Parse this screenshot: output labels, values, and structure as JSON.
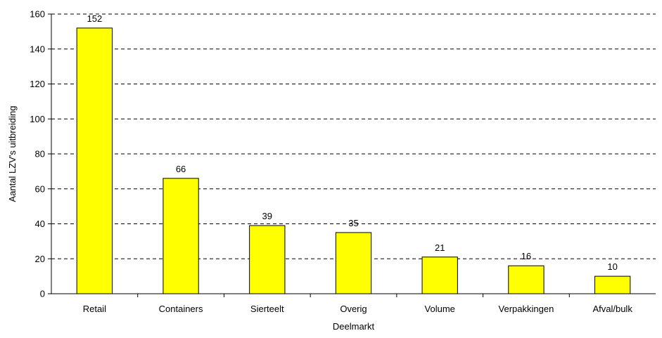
{
  "chart_data": {
    "type": "bar",
    "title": "",
    "xlabel": "Deelmarkt",
    "ylabel": "Aantal LZV's uitbreiding",
    "categories": [
      "Retail",
      "Containers",
      "Sierteelt",
      "Overig",
      "Volume",
      "Verpakkingen",
      "Afval/bulk"
    ],
    "values": [
      152,
      66,
      39,
      35,
      21,
      16,
      10
    ],
    "data_labels": [
      "152",
      "66",
      "39",
      "35",
      "21",
      "16",
      "10"
    ],
    "ylim": [
      0,
      160
    ],
    "yticks": [
      "0",
      "20",
      "40",
      "60",
      "80",
      "100",
      "120",
      "140",
      "160"
    ],
    "grid": "horizontal dashed",
    "legend": "none",
    "colors": {
      "bar_fill": "#FFFF00",
      "bar_stroke": "#000000",
      "grid": "#000000",
      "axis": "#000000"
    }
  }
}
